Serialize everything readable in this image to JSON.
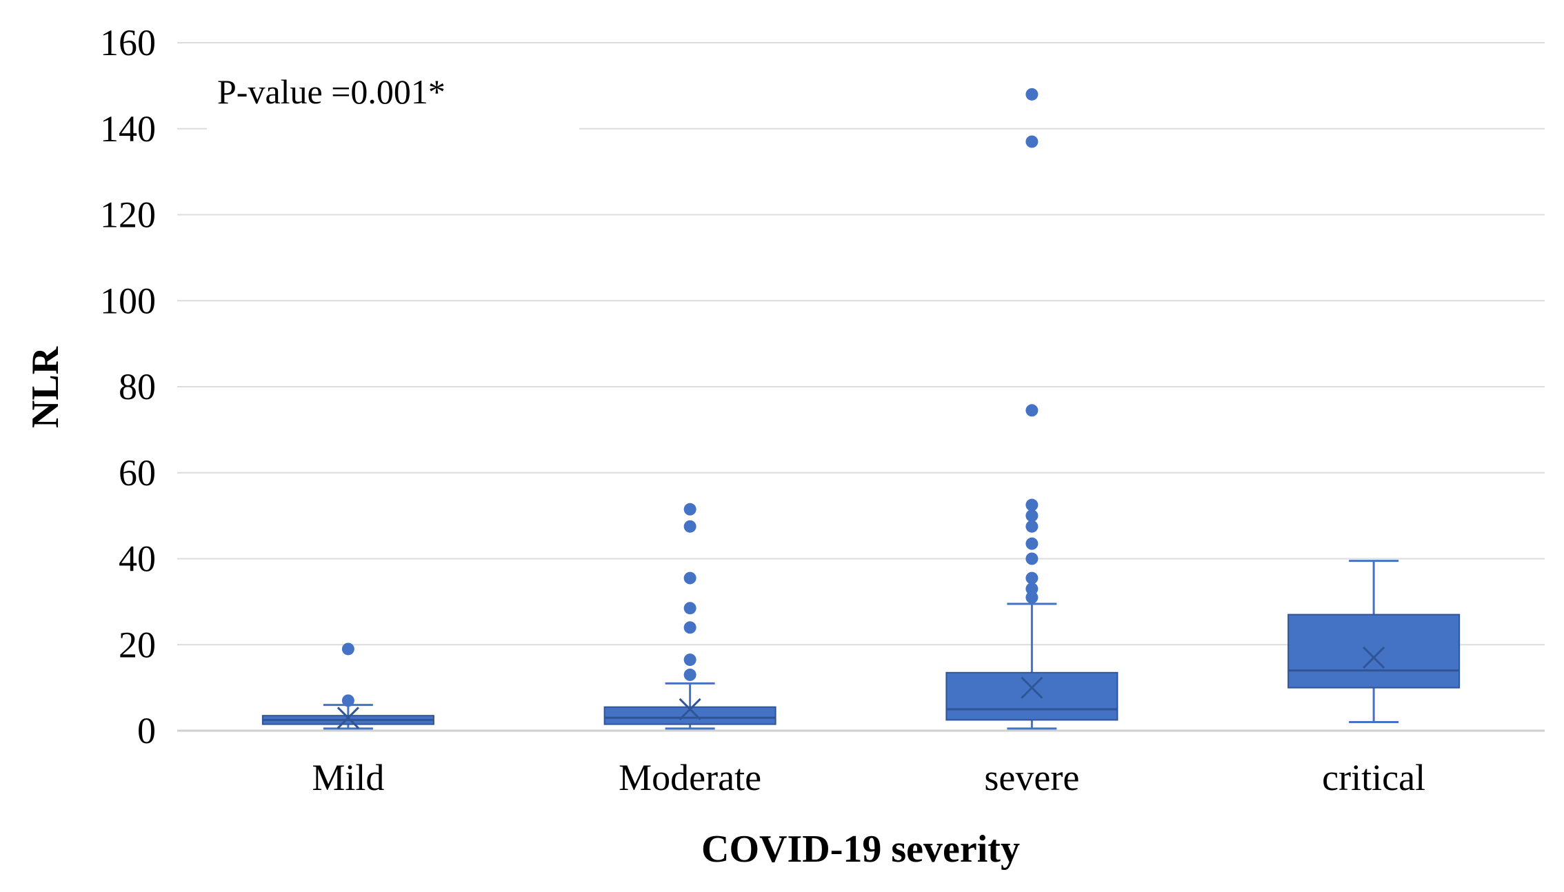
{
  "chart_data": {
    "type": "box",
    "annotation": "P-value =0.001*",
    "xlabel": "COVID-19 severity",
    "ylabel": "NLR",
    "ylim": [
      0,
      160
    ],
    "yticks": [
      0,
      20,
      40,
      60,
      80,
      100,
      120,
      140,
      160
    ],
    "grid": true,
    "color": "#4472C4",
    "categories": [
      "Mild",
      "Moderate",
      "severe",
      "critical"
    ],
    "boxes": [
      {
        "category": "Mild",
        "min": 0.5,
        "q1": 1.5,
        "median": 2.5,
        "q3": 3.5,
        "max": 6,
        "mean": 3,
        "outliers": [
          7,
          19
        ]
      },
      {
        "category": "Moderate",
        "min": 0.5,
        "q1": 1.5,
        "median": 3,
        "q3": 5.5,
        "max": 11,
        "mean": 5,
        "outliers": [
          13,
          16.5,
          24,
          28.5,
          35.5,
          47.5,
          51.5
        ]
      },
      {
        "category": "severe",
        "min": 0.5,
        "q1": 2.5,
        "median": 5,
        "q3": 13.5,
        "max": 29.5,
        "mean": 10,
        "outliers": [
          31,
          33,
          35.5,
          40,
          43.5,
          47.5,
          50,
          52.5,
          74.5,
          137,
          148
        ]
      },
      {
        "category": "critical",
        "min": 2,
        "q1": 10,
        "median": 14,
        "q3": 27,
        "max": 39.5,
        "mean": 17,
        "outliers": []
      }
    ]
  }
}
